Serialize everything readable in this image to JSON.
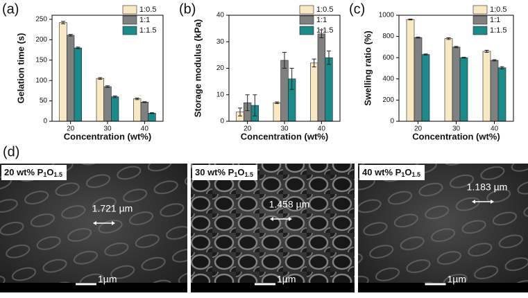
{
  "chart_data": [
    {
      "type": "bar",
      "label": "(a)",
      "y_label": "Gelation time (s)",
      "x_label": "Concentration (wt%)",
      "categories": [
        "20",
        "30",
        "40"
      ],
      "series": [
        {
          "name": "1:0.5",
          "color": "#f8e9c4",
          "values": [
            242,
            105,
            55
          ],
          "errors": [
            3,
            2,
            2
          ]
        },
        {
          "name": "1:1",
          "color": "#808080",
          "values": [
            211,
            85,
            47
          ],
          "errors": [
            2,
            2,
            1
          ]
        },
        {
          "name": "1:1.5",
          "color": "#1b8a8a",
          "values": [
            180,
            60,
            20
          ],
          "errors": [
            2,
            2,
            1
          ]
        }
      ],
      "ylim": [
        0,
        260
      ],
      "yticks": [
        0,
        50,
        100,
        150,
        200,
        250
      ]
    },
    {
      "type": "bar",
      "label": "(b)",
      "y_label": "Storage modulus (kPa)",
      "x_label": "Concentration (wt%)",
      "categories": [
        "20",
        "30",
        "40"
      ],
      "series": [
        {
          "name": "1:0.5",
          "color": "#f8e9c4",
          "values": [
            3.5,
            7,
            22
          ],
          "errors": [
            1.5,
            0.3,
            1.5
          ]
        },
        {
          "name": "1:1",
          "color": "#808080",
          "values": [
            7,
            23,
            33
          ],
          "errors": [
            3,
            3,
            1.5
          ]
        },
        {
          "name": "1:1.5",
          "color": "#1b8a8a",
          "values": [
            6,
            16,
            24
          ],
          "errors": [
            4,
            4,
            2.5
          ]
        }
      ],
      "ylim": [
        0,
        40
      ],
      "yticks": [
        0,
        10,
        20,
        30,
        40
      ]
    },
    {
      "type": "bar",
      "label": "(c)",
      "y_label": "Swelling ratio (%)",
      "x_label": "Concentration (wt%)",
      "categories": [
        "20",
        "30",
        "40"
      ],
      "series": [
        {
          "name": "1:0.5",
          "color": "#f8e9c4",
          "values": [
            960,
            780,
            660
          ],
          "errors": [
            4,
            8,
            10
          ]
        },
        {
          "name": "1:1",
          "color": "#808080",
          "values": [
            790,
            700,
            575
          ],
          "errors": [
            5,
            6,
            6
          ]
        },
        {
          "name": "1:1.5",
          "color": "#1b8a8a",
          "values": [
            630,
            600,
            505
          ],
          "errors": [
            5,
            4,
            10
          ]
        }
      ],
      "ylim": [
        0,
        1000
      ],
      "yticks": [
        0,
        200,
        400,
        600,
        800,
        1000
      ]
    }
  ],
  "sem": {
    "label": "(d)",
    "images": [
      {
        "title": [
          "20 wt% P",
          "1",
          "O",
          "1.5"
        ],
        "pore": "1.721 µm",
        "scale": "1µm"
      },
      {
        "title": [
          "30 wt% P",
          "1",
          "O",
          "1.5"
        ],
        "pore": "1.458 µm",
        "scale": "1µm"
      },
      {
        "title": [
          "40 wt% P",
          "1",
          "O",
          "1.5"
        ],
        "pore": "1.183 µm",
        "scale": "1µm"
      }
    ]
  }
}
